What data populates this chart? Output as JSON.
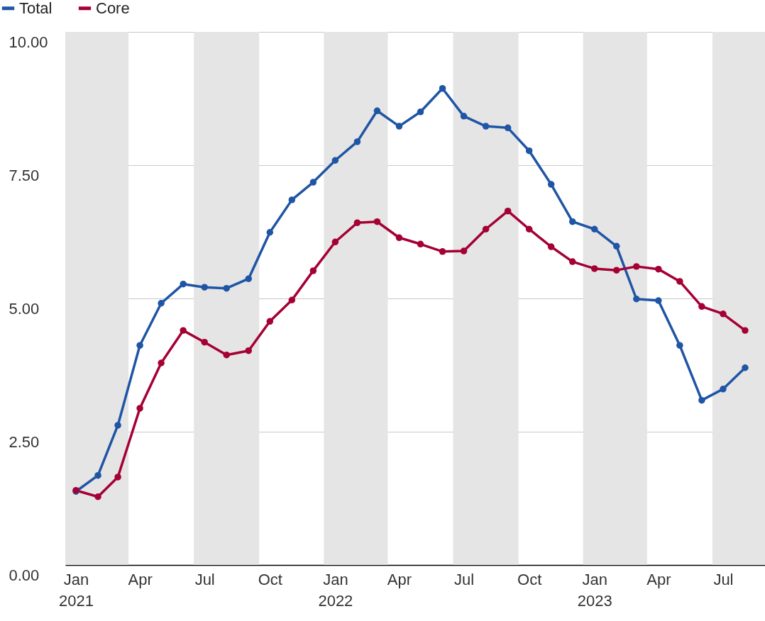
{
  "chart_data": {
    "type": "line",
    "x": [
      "2021-01",
      "2021-02",
      "2021-03",
      "2021-04",
      "2021-05",
      "2021-06",
      "2021-07",
      "2021-08",
      "2021-09",
      "2021-10",
      "2021-11",
      "2021-12",
      "2022-01",
      "2022-02",
      "2022-03",
      "2022-04",
      "2022-05",
      "2022-06",
      "2022-07",
      "2022-08",
      "2022-09",
      "2022-10",
      "2022-11",
      "2022-12",
      "2023-01",
      "2023-02",
      "2023-03",
      "2023-04",
      "2023-05",
      "2023-06",
      "2023-07",
      "2023-08"
    ],
    "series": [
      {
        "name": "Total",
        "color": "#1f55a5",
        "values": [
          1.38,
          1.68,
          2.62,
          4.12,
          4.91,
          5.27,
          5.21,
          5.19,
          5.37,
          6.24,
          6.85,
          7.18,
          7.59,
          7.94,
          8.52,
          8.23,
          8.5,
          8.94,
          8.42,
          8.23,
          8.2,
          7.77,
          7.14,
          6.44,
          6.3,
          5.98,
          4.99,
          4.96,
          4.12,
          3.09,
          3.3,
          3.7
        ]
      },
      {
        "name": "Core",
        "color": "#a50034",
        "values": [
          1.4,
          1.28,
          1.65,
          2.94,
          3.79,
          4.4,
          4.18,
          3.94,
          4.02,
          4.57,
          4.97,
          5.52,
          6.06,
          6.42,
          6.44,
          6.14,
          6.02,
          5.88,
          5.89,
          6.3,
          6.64,
          6.3,
          5.97,
          5.69,
          5.56,
          5.53,
          5.6,
          5.55,
          5.32,
          4.85,
          4.71,
          4.4
        ]
      }
    ],
    "xlim": [
      "2020-12-17",
      "2023-08-29"
    ],
    "xticks": [
      {
        "value": "2021-01",
        "label": "Jan\n2021"
      },
      {
        "value": "2021-04",
        "label": "Apr"
      },
      {
        "value": "2021-07",
        "label": "Jul"
      },
      {
        "value": "2021-10",
        "label": "Oct"
      },
      {
        "value": "2022-01",
        "label": "Jan\n2022"
      },
      {
        "value": "2022-04",
        "label": "Apr"
      },
      {
        "value": "2022-07",
        "label": "Jul"
      },
      {
        "value": "2022-10",
        "label": "Oct"
      },
      {
        "value": "2023-01",
        "label": "Jan\n2023"
      },
      {
        "value": "2023-04",
        "label": "Apr"
      },
      {
        "value": "2023-07",
        "label": "Jul"
      }
    ],
    "ylim": [
      0,
      10
    ],
    "yticks": [
      {
        "value": 0,
        "label": "0.00"
      },
      {
        "value": 2.5,
        "label": "2.50"
      },
      {
        "value": 5,
        "label": "5.00"
      },
      {
        "value": 7.5,
        "label": "7.50"
      },
      {
        "value": 10,
        "label": "10.00"
      }
    ],
    "bands": [
      {
        "axis": "x",
        "from": "2020-12-17",
        "to": "2021-03-16",
        "color": "#e5e5e5"
      },
      {
        "axis": "x",
        "from": "2021-06-16",
        "to": "2021-09-16",
        "color": "#e5e5e5"
      },
      {
        "axis": "x",
        "from": "2021-12-16",
        "to": "2022-03-16",
        "color": "#e5e5e5"
      },
      {
        "axis": "x",
        "from": "2022-06-16",
        "to": "2022-09-16",
        "color": "#e5e5e5"
      },
      {
        "axis": "x",
        "from": "2022-12-16",
        "to": "2023-03-16",
        "color": "#e5e5e5"
      },
      {
        "axis": "x",
        "from": "2023-06-16",
        "to": "2023-08-29",
        "color": "#e5e5e5"
      }
    ],
    "grid": "y",
    "legend": "top left",
    "marker": "circle",
    "line_style": "solid"
  }
}
